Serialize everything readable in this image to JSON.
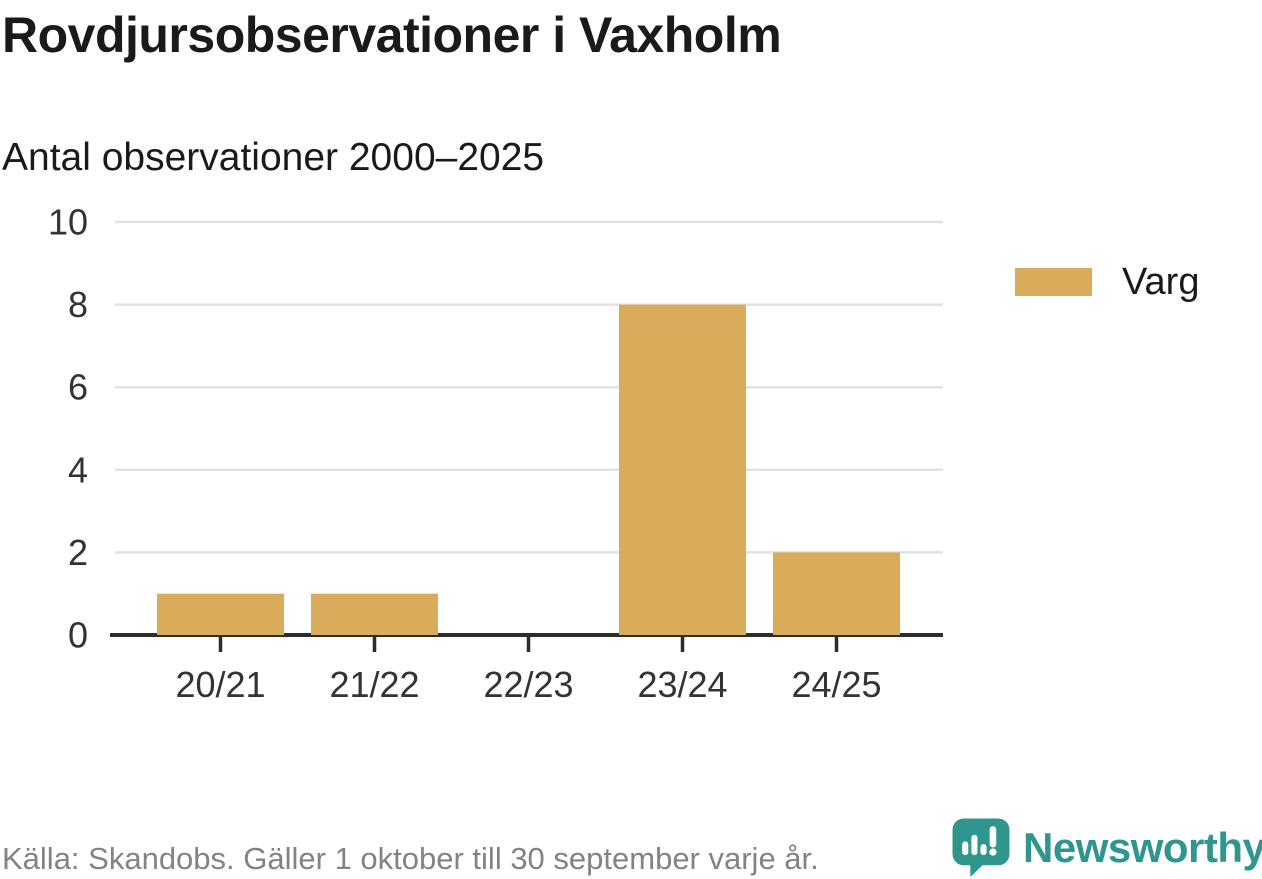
{
  "colors": {
    "bar": "#d9ab5a",
    "axis": "#2d2d2d",
    "grid": "#e2e2e2",
    "text": "#1a1a1a",
    "muted": "#838383",
    "brand_teal": "#2f968e"
  },
  "brand": {
    "name": "Newsworthy"
  },
  "chart_data": {
    "type": "bar",
    "title": "Rovdjursobservationer i Vaxholm",
    "subtitle": "Antal observationer 2000–2025",
    "categories": [
      "20/21",
      "21/22",
      "22/23",
      "23/24",
      "24/25"
    ],
    "series": [
      {
        "name": "Varg",
        "color": "#d9ab5a",
        "values": [
          1,
          1,
          0,
          8,
          2
        ]
      }
    ],
    "ylim": [
      0,
      10
    ],
    "yticks": [
      0,
      2,
      4,
      6,
      8,
      10
    ],
    "grid": "horizontal",
    "legend_position": "right",
    "source": "Källa: Skandobs. Gäller 1 oktober till 30 september varje år."
  }
}
